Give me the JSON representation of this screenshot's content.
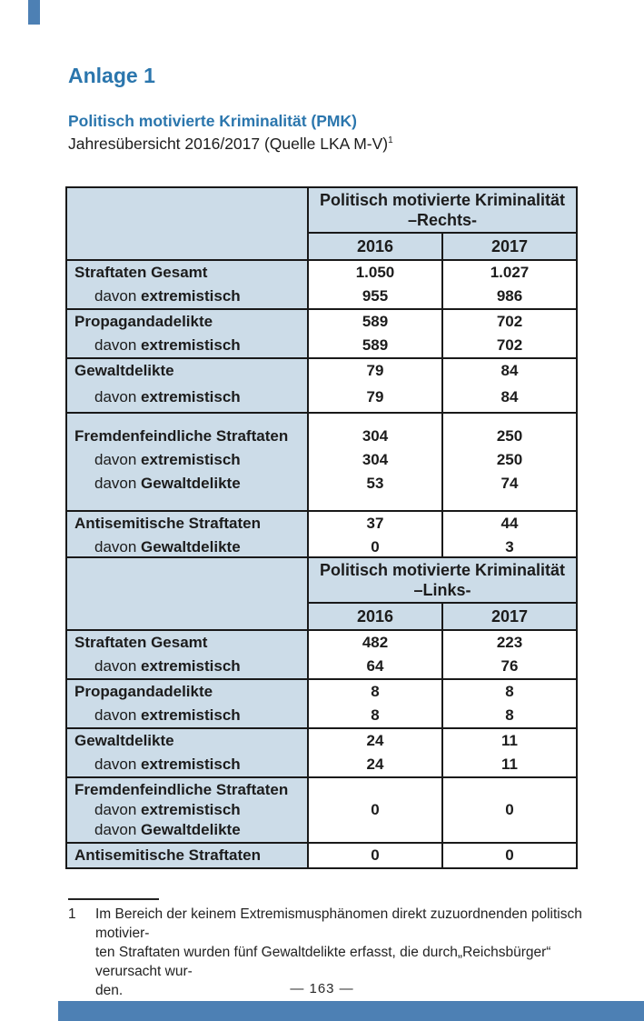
{
  "page": {
    "heading": "Anlage 1",
    "subheading": "Politisch motivierte Kriminalität (PMK)",
    "subtitle_line": "Jahresübersicht 2016/2017 (Quelle LKA M-V)",
    "page_number": "—  163  —"
  },
  "colors": {
    "accent_blue": "#2b76ad",
    "bar_blue": "#4d80b4",
    "table_cell_blue": "#ccdce8",
    "border": "#191919"
  },
  "tables": [
    {
      "title_line1": "Politisch motivierte Kriminalität",
      "title_line2": "–Rechts-",
      "col_headers": [
        "2016",
        "2017"
      ],
      "groups": [
        {
          "rows": [
            {
              "prefix": "",
              "label": "Straftaten Gesamt",
              "v2016": "1.050",
              "v2017": "1.027"
            },
            {
              "prefix": "davon ",
              "label": "extremistisch",
              "v2016": "955",
              "v2017": "986"
            }
          ]
        },
        {
          "rows": [
            {
              "prefix": "",
              "label": "Propagandadelikte",
              "v2016": "589",
              "v2017": "702"
            },
            {
              "prefix": "davon ",
              "label": "extremistisch",
              "v2016": "589",
              "v2017": "702"
            }
          ]
        },
        {
          "rows": [
            {
              "prefix": "",
              "label": "Gewaltdelikte",
              "v2016": "79",
              "v2017": "84"
            },
            {
              "prefix": "davon ",
              "label": "extremistisch",
              "v2016": "79",
              "v2017": "84"
            }
          ]
        },
        {
          "rows": [
            {
              "prefix": "",
              "label": "Fremdenfeindliche Straftaten",
              "v2016": "304",
              "v2017": "250"
            },
            {
              "prefix": "davon ",
              "label": "extremistisch",
              "v2016": "304",
              "v2017": "250"
            },
            {
              "prefix": "davon ",
              "label": "Gewaltdelikte",
              "v2016": "53",
              "v2017": "74"
            }
          ]
        },
        {
          "rows": [
            {
              "prefix": "",
              "label": "Antisemitische Straftaten",
              "v2016": "37",
              "v2017": "44"
            },
            {
              "prefix": "davon ",
              "label": "Gewaltdelikte",
              "v2016": "0",
              "v2017": "3"
            }
          ]
        }
      ]
    },
    {
      "title_line1": "Politisch motivierte Kriminalität",
      "title_line2": "–Links-",
      "col_headers": [
        "2016",
        "2017"
      ],
      "groups": [
        {
          "rows": [
            {
              "prefix": "",
              "label": "Straftaten Gesamt",
              "v2016": "482",
              "v2017": "223"
            },
            {
              "prefix": "davon ",
              "label": "extremistisch",
              "v2016": "64",
              "v2017": "76"
            }
          ]
        },
        {
          "rows": [
            {
              "prefix": "",
              "label": "Propagandadelikte",
              "v2016": "8",
              "v2017": "8"
            },
            {
              "prefix": "davon ",
              "label": "extremistisch",
              "v2016": "8",
              "v2017": "8"
            }
          ]
        },
        {
          "rows": [
            {
              "prefix": "",
              "label": "Gewaltdelikte",
              "v2016": "24",
              "v2017": "11"
            },
            {
              "prefix": "davon ",
              "label": "extremistisch",
              "v2016": "24",
              "v2017": "11"
            }
          ]
        },
        {
          "lines": [
            {
              "prefix": "",
              "label": "Fremdenfeindliche Straftaten"
            },
            {
              "prefix": "davon ",
              "label": "extremistisch"
            },
            {
              "prefix": "davon ",
              "label": "Gewaltdelikte"
            }
          ],
          "v2016": "0",
          "v2017": "0"
        },
        {
          "rows": [
            {
              "prefix": "",
              "label": "Antisemitische Straftaten",
              "v2016": "0",
              "v2017": "0"
            }
          ]
        }
      ]
    }
  ],
  "footnote": {
    "marker": "1",
    "lines": [
      "Im Bereich der keinem Extremismusphänomen direkt zuzuordnenden politisch motivier-",
      "ten Straftaten wurden fünf Gewaltdelikte erfasst, die durch„Reichsbürger“ verursacht wur-",
      "den."
    ]
  }
}
